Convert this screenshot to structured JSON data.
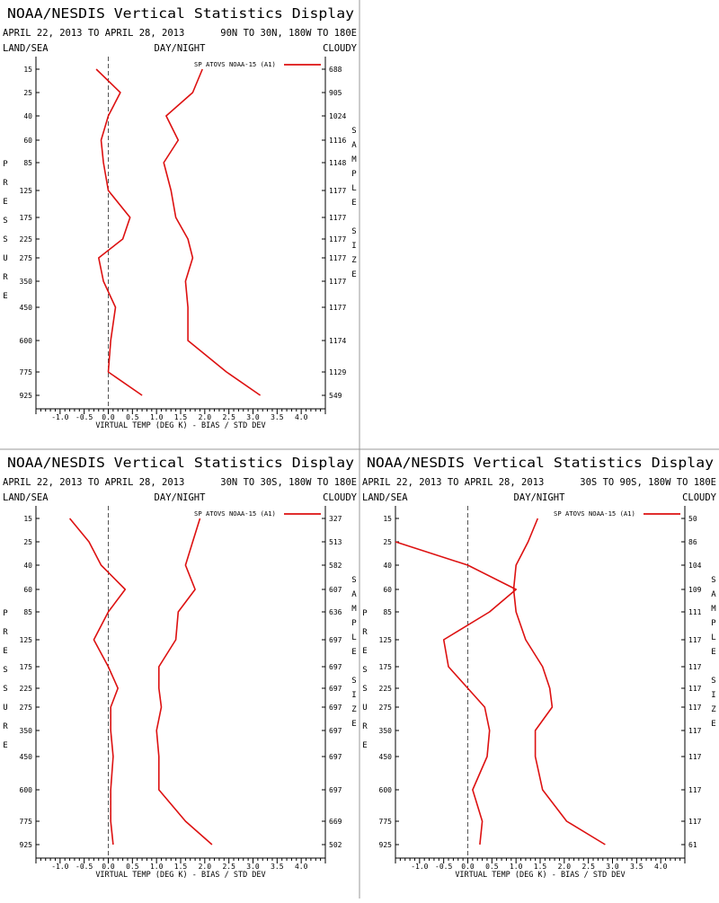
{
  "display_title": "NOAA/NESDIS Vertical Statistics Display",
  "date_range": "APRIL 22, 2013 TO APRIL 28, 2013",
  "header_labels": {
    "left": "LAND/SEA",
    "center": "DAY/NIGHT",
    "right": "CLOUDY"
  },
  "y_axis_letters": [
    "P",
    "R",
    "E",
    "S",
    "S",
    "U",
    "R",
    "E"
  ],
  "right_axis_letters": [
    "S",
    "A",
    "M",
    "P",
    "L",
    "E",
    "",
    "S",
    "I",
    "Z",
    "E"
  ],
  "x_axis_label": "VIRTUAL TEMP (DEG K) - BIAS / STD DEV",
  "legend_label": "SP ATOVS NOAA-15 (A1)",
  "colors": {
    "series": "#dd1111",
    "zero_line": "#555555",
    "divider": "#999999"
  },
  "chart_data": [
    {
      "type": "line",
      "region": "90N TO 30N, 180W TO 180E",
      "pressure_levels": [
        "15",
        "25",
        "40",
        "60",
        "85",
        "125",
        "175",
        "225",
        "275",
        "350",
        "450",
        "600",
        "775",
        "925"
      ],
      "sample_sizes": [
        "688",
        "905",
        "1024",
        "1116",
        "1148",
        "1177",
        "1177",
        "1177",
        "1177",
        "1177",
        "1177",
        "1174",
        "1129",
        "549"
      ],
      "xlim": [
        -1.5,
        4.5
      ],
      "x_ticks": [
        "-1.0",
        "-0.5",
        "0.0",
        "0.5",
        "1.0",
        "1.5",
        "2.0",
        "2.5",
        "3.0",
        "3.5",
        "4.0"
      ],
      "series": [
        {
          "values": [
            -0.25,
            0.25,
            0.0,
            -0.15,
            -0.1,
            0.0,
            0.45,
            0.3,
            -0.2,
            -0.1,
            0.15,
            0.05,
            0.0,
            0.7
          ]
        },
        {
          "values": [
            1.95,
            1.75,
            1.2,
            1.45,
            1.15,
            1.3,
            1.4,
            1.65,
            1.75,
            1.6,
            1.65,
            1.65,
            2.45,
            3.15
          ]
        }
      ]
    },
    {
      "type": "line",
      "region": "30N TO 30S, 180W TO 180E",
      "pressure_levels": [
        "15",
        "25",
        "40",
        "60",
        "85",
        "125",
        "175",
        "225",
        "275",
        "350",
        "450",
        "600",
        "775",
        "925"
      ],
      "sample_sizes": [
        "327",
        "513",
        "582",
        "607",
        "636",
        "697",
        "697",
        "697",
        "697",
        "697",
        "697",
        "697",
        "669",
        "502"
      ],
      "xlim": [
        -1.5,
        4.5
      ],
      "x_ticks": [
        "-1.0",
        "-0.5",
        "0.0",
        "0.5",
        "1.0",
        "1.5",
        "2.0",
        "2.5",
        "3.0",
        "3.5",
        "4.0"
      ],
      "series": [
        {
          "values": [
            -0.8,
            -0.4,
            -0.15,
            0.35,
            0.0,
            -0.3,
            0.0,
            0.2,
            0.05,
            0.05,
            0.1,
            0.05,
            0.05,
            0.1
          ]
        },
        {
          "values": [
            1.9,
            1.75,
            1.6,
            1.8,
            1.45,
            1.4,
            1.05,
            1.05,
            1.1,
            1.0,
            1.05,
            1.05,
            1.6,
            2.15
          ]
        }
      ]
    },
    {
      "type": "line",
      "region": "30S TO 90S, 180W TO 180E",
      "pressure_levels": [
        "15",
        "25",
        "40",
        "60",
        "85",
        "125",
        "175",
        "225",
        "275",
        "350",
        "450",
        "600",
        "775",
        "925"
      ],
      "sample_sizes": [
        "50",
        "86",
        "104",
        "109",
        "111",
        "117",
        "117",
        "117",
        "117",
        "117",
        "117",
        "117",
        "117",
        "61"
      ],
      "xlim": [
        -1.5,
        4.5
      ],
      "x_ticks": [
        "-1.0",
        "-0.5",
        "0.0",
        "0.5",
        "1.0",
        "1.5",
        "2.0",
        "2.5",
        "3.0",
        "3.5",
        "4.0"
      ],
      "series": [
        {
          "values": [
            null,
            -1.5,
            0.0,
            1.0,
            0.45,
            -0.5,
            -0.4,
            0.0,
            0.35,
            0.45,
            0.4,
            0.1,
            0.3,
            0.25
          ]
        },
        {
          "values": [
            1.45,
            1.25,
            1.0,
            0.95,
            1.0,
            1.2,
            1.55,
            1.7,
            1.75,
            1.4,
            1.4,
            1.55,
            2.05,
            2.85
          ]
        }
      ]
    }
  ]
}
